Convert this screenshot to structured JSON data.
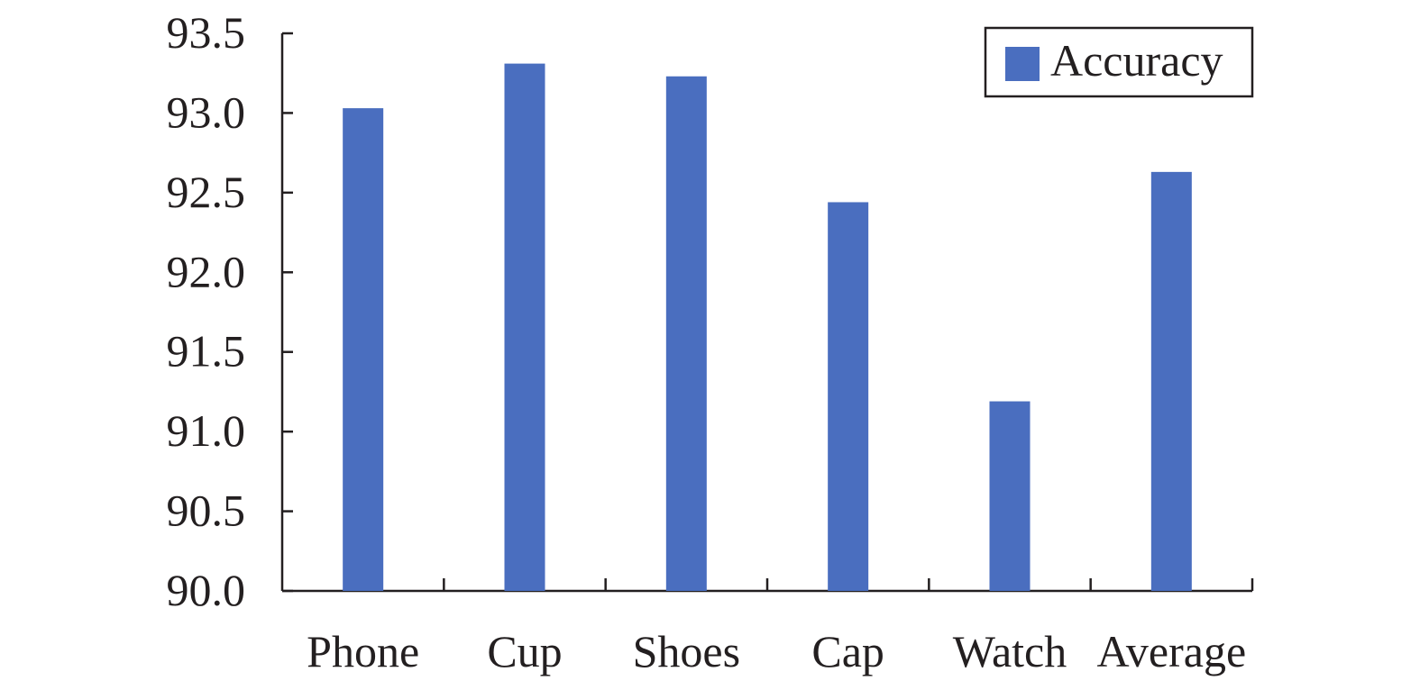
{
  "chart_data": {
    "type": "bar",
    "categories": [
      "Phone",
      "Cup",
      "Shoes",
      "Cap",
      "Watch",
      "Average"
    ],
    "series": [
      {
        "name": "Accuracy",
        "values": [
          93.03,
          93.31,
          93.23,
          92.44,
          91.19,
          92.63
        ]
      }
    ],
    "ylim": [
      90.0,
      93.5
    ],
    "yticks": [
      "90.0",
      "90.5",
      "91.0",
      "91.5",
      "92.0",
      "92.5",
      "93.0",
      "93.5"
    ],
    "ytick_values": [
      90.0,
      90.5,
      91.0,
      91.5,
      92.0,
      92.5,
      93.0,
      93.5
    ],
    "legend_position": "top-right",
    "grid": false,
    "colors": {
      "bar": "#4a6ebf",
      "axis": "#231f20",
      "text": "#231f20"
    }
  }
}
